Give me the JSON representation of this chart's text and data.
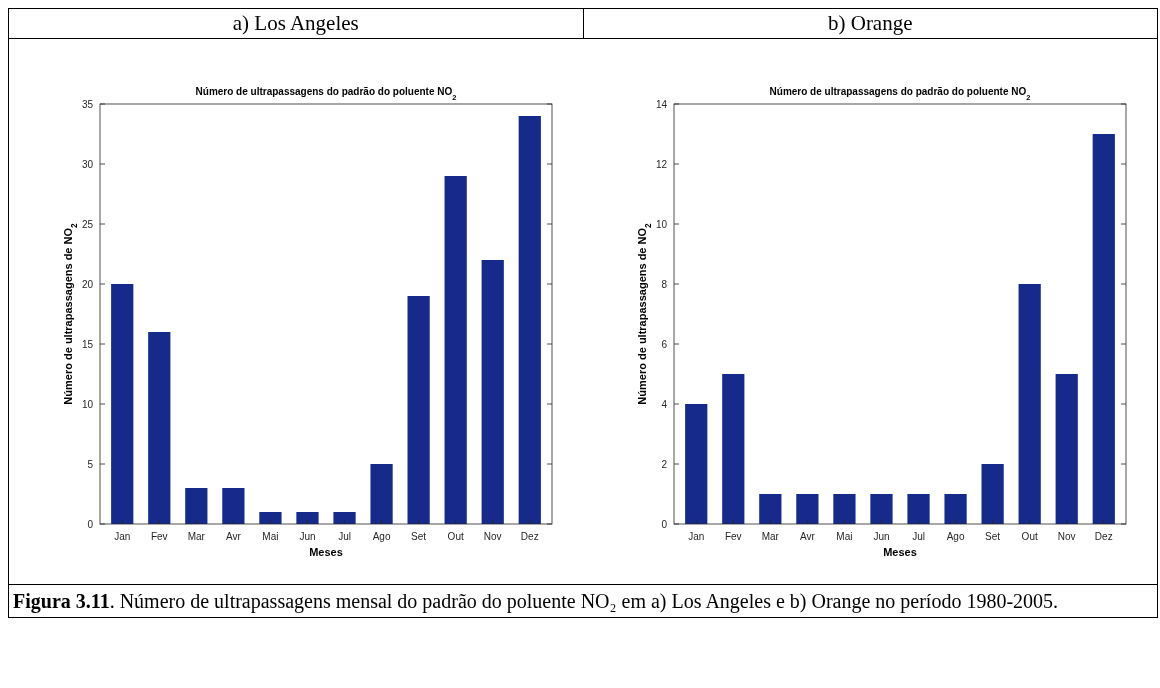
{
  "chart_data": [
    {
      "type": "bar",
      "subtitle": "a)  Los Angeles",
      "title": "Número de ultrapassagens do padrão do poluente NO$_{2}$",
      "xlabel": "Meses",
      "ylabel": "Número de ultrapassagens de NO$_{2}$",
      "categories": [
        "Jan",
        "Fev",
        "Mar",
        "Avr",
        "Mai",
        "Jun",
        "Jul",
        "Ago",
        "Set",
        "Out",
        "Nov",
        "Dez"
      ],
      "values": [
        20,
        16,
        3,
        3,
        1,
        1,
        1,
        5,
        19,
        29,
        22,
        34
      ],
      "color": "#162a8c",
      "ylim": [
        0,
        35
      ],
      "yticks": [
        0,
        5,
        10,
        15,
        20,
        25,
        30,
        35
      ],
      "grid": false,
      "annotations": [
        "Figura 3.11. Número de ultrapassagens mensal do padrão do poluente NO₂ em a) Los Angeles e b) Orange no período 1980-2005."
      ]
    },
    {
      "type": "bar",
      "subtitle": "b)  Orange",
      "title": "Número de ultrapassagens do padrão do poluente NO$_{2}$",
      "xlabel": "Meses",
      "ylabel": "Número de ultrapassagens de NO$_{2}$",
      "categories": [
        "Jan",
        "Fev",
        "Mar",
        "Avr",
        "Mai",
        "Jun",
        "Jul",
        "Ago",
        "Set",
        "Out",
        "Nov",
        "Dez"
      ],
      "values": [
        4,
        5,
        1,
        1,
        1,
        1,
        1,
        1,
        2,
        8,
        5,
        13
      ],
      "color": "#162a8c",
      "ylim": [
        0,
        14
      ],
      "yticks": [
        0,
        2,
        4,
        6,
        8,
        10,
        12,
        14
      ],
      "grid": false
    }
  ]
}
